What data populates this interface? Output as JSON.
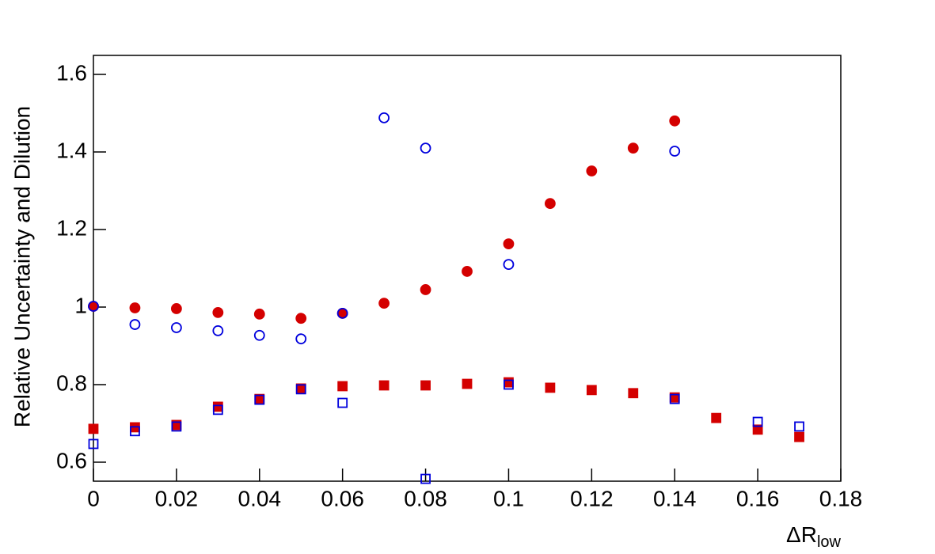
{
  "chart_data": {
    "type": "scatter",
    "y_label": "Relative Uncertainty and Dilution",
    "x_label": "ΔR",
    "x_label_sub": "low",
    "xlim": [
      0,
      0.18
    ],
    "xticks": [
      0,
      0.02,
      0.04,
      0.06,
      0.08,
      0.1,
      0.12,
      0.14,
      0.16,
      0.18
    ],
    "ylim": [
      0.551,
      1.649
    ],
    "yticks": [
      0.6,
      0.8,
      1,
      1.2,
      1.4,
      1.6
    ],
    "grid": false,
    "series": [
      {
        "color": "#d40000",
        "marker": "circle",
        "filled": true,
        "x": [
          0,
          0.01,
          0.02,
          0.03,
          0.04,
          0.05,
          0.06,
          0.07,
          0.08,
          0.09,
          0.1,
          0.11,
          0.12,
          0.13,
          0.14
        ],
        "values": [
          1.002,
          0.998,
          0.996,
          0.986,
          0.982,
          0.971,
          0.984,
          1.01,
          1.045,
          1.092,
          1.163,
          1.267,
          1.351,
          1.41,
          1.48
        ]
      },
      {
        "color": "#0000dd",
        "marker": "circle",
        "filled": false,
        "x": [
          0,
          0.01,
          0.02,
          0.03,
          0.04,
          0.05,
          0.06,
          0.07,
          0.08,
          0.1,
          0.14
        ],
        "values": [
          1.002,
          0.955,
          0.947,
          0.939,
          0.927,
          0.918,
          0.984,
          1.488,
          1.41,
          1.11,
          1.402
        ]
      },
      {
        "color": "#d40000",
        "marker": "square",
        "filled": true,
        "x": [
          0,
          0.01,
          0.02,
          0.03,
          0.04,
          0.05,
          0.06,
          0.07,
          0.08,
          0.09,
          0.1,
          0.11,
          0.12,
          0.13,
          0.14,
          0.15,
          0.16,
          0.17
        ],
        "values": [
          0.686,
          0.69,
          0.696,
          0.743,
          0.763,
          0.79,
          0.796,
          0.798,
          0.798,
          0.802,
          0.806,
          0.792,
          0.786,
          0.778,
          0.767,
          0.714,
          0.684,
          0.665
        ]
      },
      {
        "color": "#0000dd",
        "marker": "square",
        "filled": false,
        "x": [
          0,
          0.01,
          0.02,
          0.03,
          0.04,
          0.05,
          0.06,
          0.08,
          0.1,
          0.14,
          0.16,
          0.17
        ],
        "values": [
          0.647,
          0.68,
          0.692,
          0.735,
          0.761,
          0.788,
          0.753,
          0.557,
          0.8,
          0.763,
          0.704,
          0.692
        ]
      }
    ]
  }
}
